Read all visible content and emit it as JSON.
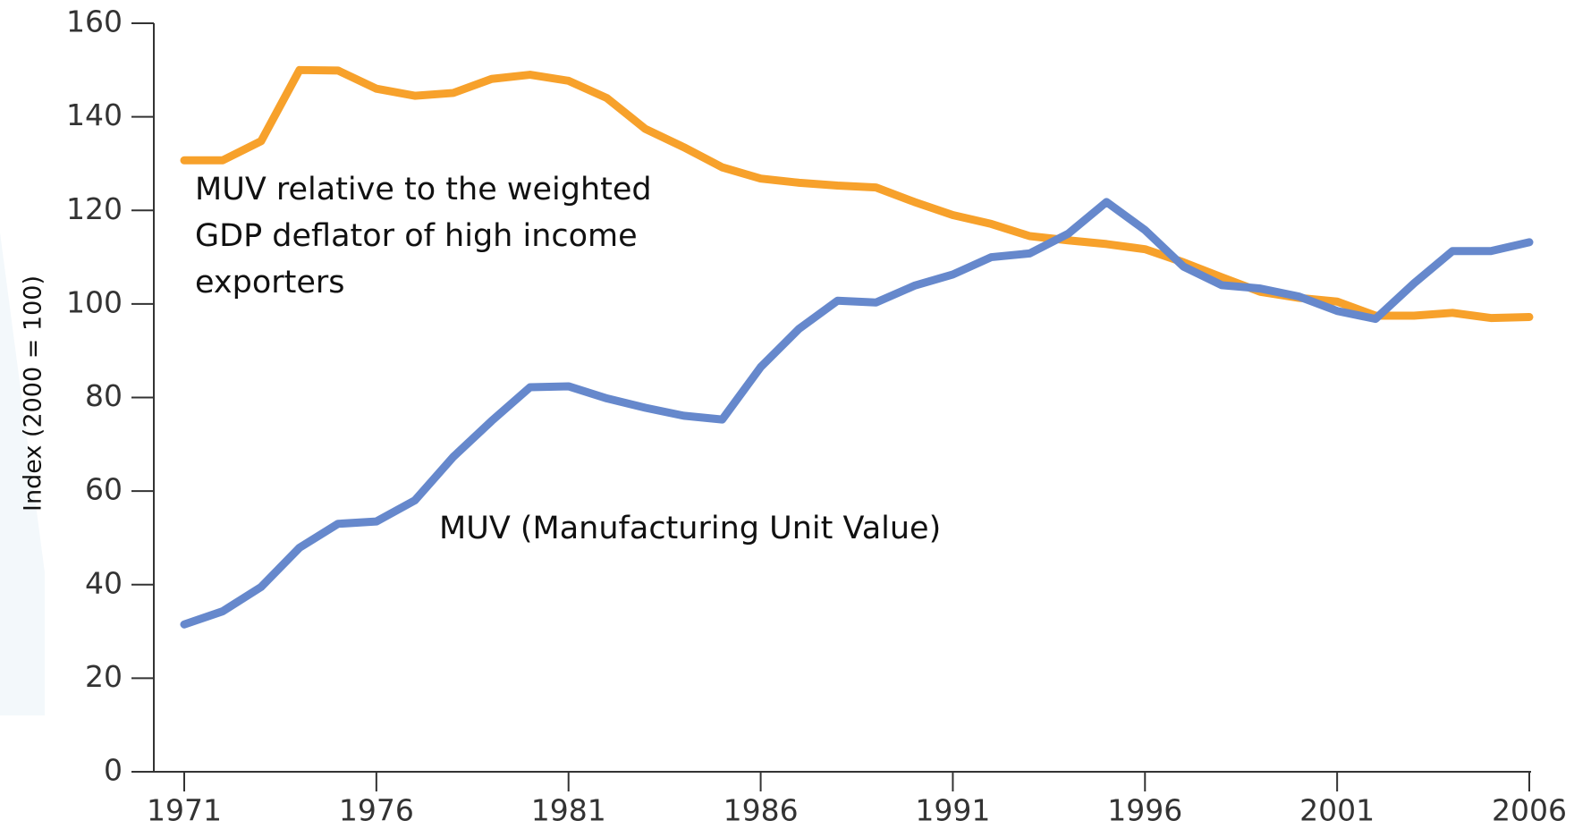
{
  "chart_data": {
    "type": "line",
    "y_label": "Index (2000 = 100)",
    "x": [
      1971,
      1972,
      1973,
      1974,
      1975,
      1976,
      1977,
      1978,
      1979,
      1980,
      1981,
      1982,
      1983,
      1984,
      1985,
      1986,
      1987,
      1988,
      1989,
      1990,
      1991,
      1992,
      1993,
      1994,
      1995,
      1996,
      1997,
      1998,
      1999,
      2000,
      2001,
      2002,
      2003,
      2004,
      2005,
      2006
    ],
    "series": [
      {
        "name": "MUV relative to the weighted GDP deflator of high income exporters",
        "color": "#f7a12b",
        "values": [
          130.7,
          130.7,
          134.8,
          150,
          149.9,
          146,
          144.5,
          145.1,
          148.1,
          149,
          147.7,
          144,
          137.4,
          133.5,
          129.2,
          126.8,
          125.9,
          125.3,
          124.9,
          121.8,
          119,
          117.1,
          114.5,
          113.6,
          112.8,
          111.7,
          108.9,
          105.7,
          102.6,
          101.3,
          100.5,
          97.5,
          97.5,
          98.1,
          97,
          97.2
        ]
      },
      {
        "name": "MUV (Manufacturing Unit Value)",
        "color": "#6688cc",
        "values": [
          31.5,
          34.3,
          39.5,
          47.9,
          53,
          53.5,
          58,
          67.3,
          75,
          82.2,
          82.4,
          79.8,
          77.8,
          76.1,
          75.3,
          86.5,
          94.7,
          100.7,
          100.3,
          103.9,
          106.3,
          110,
          110.8,
          115,
          121.8,
          115.8,
          108,
          104,
          103.3,
          101.6,
          98.5,
          96.8,
          104.4,
          111.3,
          111.3,
          113.2
        ]
      }
    ],
    "xlim": [
      1971,
      2006
    ],
    "xticks": [
      1971,
      1976,
      1981,
      1986,
      1991,
      1996,
      2001,
      2006
    ],
    "ylim": [
      0,
      160
    ],
    "yticks": [
      0,
      20,
      40,
      60,
      80,
      100,
      120,
      140,
      160
    ],
    "grid": false
  }
}
